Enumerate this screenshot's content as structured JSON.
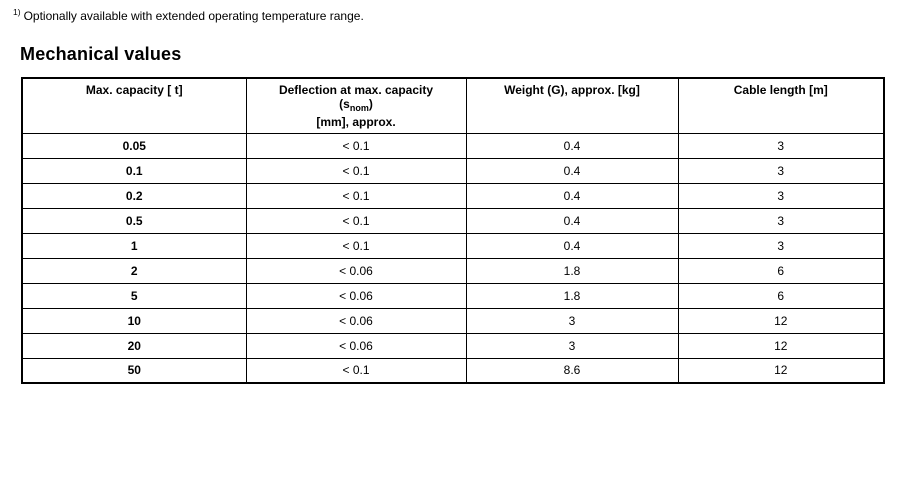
{
  "footnote": {
    "marker": "1)",
    "text": "Optionally available with extended operating temperature range."
  },
  "section": {
    "title": "Mechanical values"
  },
  "table": {
    "headers": {
      "capacity": "Max. capacity [ t]",
      "deflection_line1": "Deflection at max. capacity",
      "deflection_sym_open": "(s",
      "deflection_sym_sub": "nom",
      "deflection_sym_close": ")",
      "deflection_line3": "[mm], approx.",
      "weight": "Weight (G), approx. [kg]",
      "cable": "Cable length [m]"
    },
    "rows": [
      [
        "0.05",
        "< 0.1",
        "0.4",
        "3"
      ],
      [
        "0.1",
        "< 0.1",
        "0.4",
        "3"
      ],
      [
        "0.2",
        "< 0.1",
        "0.4",
        "3"
      ],
      [
        "0.5",
        "< 0.1",
        "0.4",
        "3"
      ],
      [
        "1",
        "< 0.1",
        "0.4",
        "3"
      ],
      [
        "2",
        "< 0.06",
        "1.8",
        "6"
      ],
      [
        "5",
        "< 0.06",
        "1.8",
        "6"
      ],
      [
        "10",
        "< 0.06",
        "3",
        "12"
      ],
      [
        "20",
        "< 0.06",
        "3",
        "12"
      ],
      [
        "50",
        "< 0.1",
        "8.6",
        "12"
      ]
    ]
  },
  "colors": {
    "text": "#000000",
    "border": "#000000",
    "background": "#ffffff"
  }
}
